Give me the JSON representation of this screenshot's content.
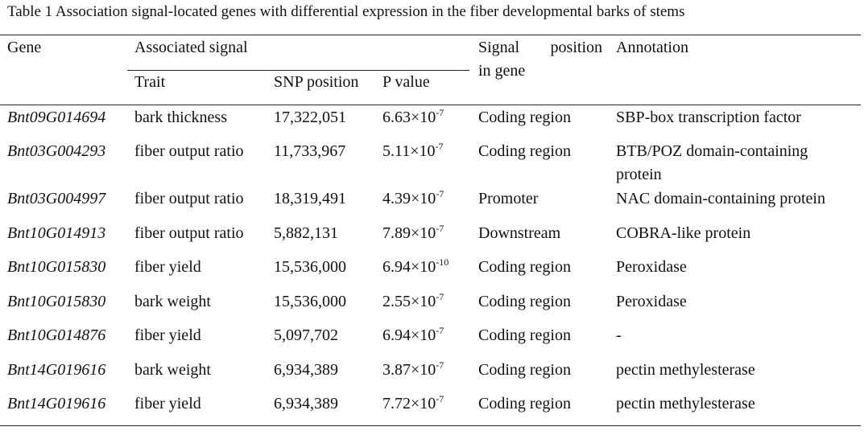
{
  "table": {
    "caption": "Table 1 Association signal-located genes with differential expression in the fiber developmental barks of stems",
    "headers": {
      "gene": "Gene",
      "associated_signal": "Associated signal",
      "trait": "Trait",
      "snp_position": "SNP position",
      "p_value": "P value",
      "signal_position_word1": "Signal",
      "signal_position_word2": "position",
      "signal_position_line2": "in gene",
      "annotation": "Annotation"
    },
    "rows": [
      {
        "gene": "Bnt09G014694",
        "trait": "bark thickness",
        "snp": "17,322,051",
        "p_base": "6.63×10",
        "p_exp": "-7",
        "position": "Coding region",
        "annotation": "SBP-box transcription factor",
        "annotation2": ""
      },
      {
        "gene": "Bnt03G004293",
        "trait": "fiber output ratio",
        "snp": "11,733,967",
        "p_base": "5.11×10",
        "p_exp": "-7",
        "position": "Coding region",
        "annotation": "BTB/POZ domain-containing",
        "annotation2": "protein"
      },
      {
        "gene": "Bnt03G004997",
        "trait": "fiber output ratio",
        "snp": "18,319,491",
        "p_base": "4.39×10",
        "p_exp": "-7",
        "position": "Promoter",
        "annotation": "NAC domain-containing protein",
        "annotation2": ""
      },
      {
        "gene": "Bnt10G014913",
        "trait": "fiber output ratio",
        "snp": "5,882,131",
        "p_base": "7.89×10",
        "p_exp": "-7",
        "position": "Downstream",
        "annotation": "COBRA-like protein",
        "annotation2": ""
      },
      {
        "gene": "Bnt10G015830",
        "trait": "fiber yield",
        "snp": "15,536,000",
        "p_base": "6.94×10",
        "p_exp": "-10",
        "position": "Coding region",
        "annotation": "Peroxidase",
        "annotation2": ""
      },
      {
        "gene": "Bnt10G015830",
        "trait": "bark weight",
        "snp": "15,536,000",
        "p_base": "2.55×10",
        "p_exp": "-7",
        "position": "Coding region",
        "annotation": "Peroxidase",
        "annotation2": ""
      },
      {
        "gene": "Bnt10G014876",
        "trait": "fiber yield",
        "snp": "5,097,702",
        "p_base": "6.94×10",
        "p_exp": "-7",
        "position": "Coding region",
        "annotation": "-",
        "annotation2": ""
      },
      {
        "gene": "Bnt14G019616",
        "trait": "bark weight",
        "snp": "6,934,389",
        "p_base": "3.87×10",
        "p_exp": "-7",
        "position": "Coding region",
        "annotation": "pectin methylesterase",
        "annotation2": ""
      },
      {
        "gene": "Bnt14G019616",
        "trait": "fiber yield",
        "snp": "6,934,389",
        "p_base": "7.72×10",
        "p_exp": "-7",
        "position": "Coding region",
        "annotation": "pectin methylesterase",
        "annotation2": ""
      }
    ]
  }
}
